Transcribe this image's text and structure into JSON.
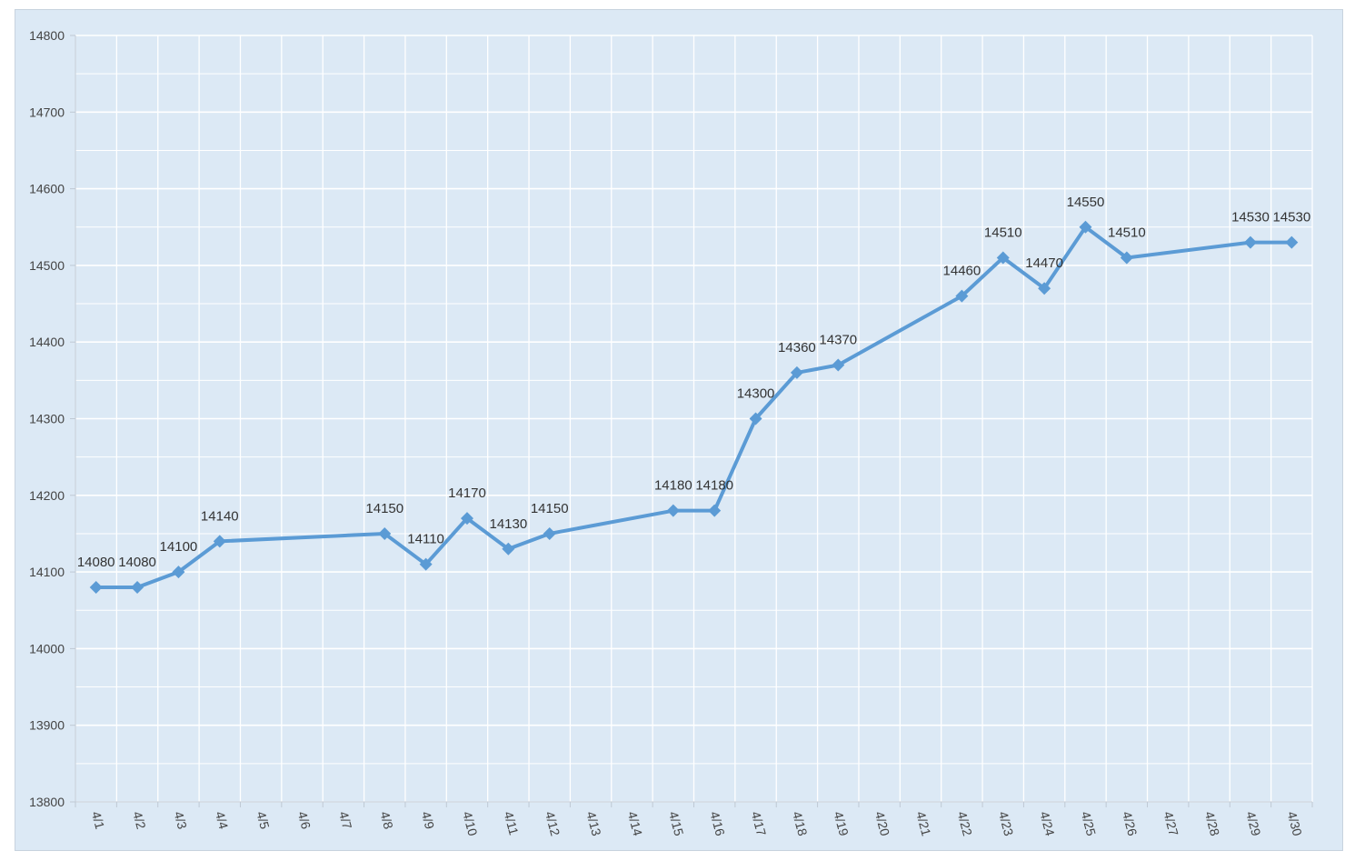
{
  "chart_data": {
    "type": "line",
    "title": "",
    "xlabel": "",
    "ylabel": "",
    "categories": [
      "4/1",
      "4/2",
      "4/3",
      "4/4",
      "4/5",
      "4/6",
      "4/7",
      "4/8",
      "4/9",
      "4/10",
      "4/11",
      "4/12",
      "4/13",
      "4/14",
      "4/15",
      "4/16",
      "4/17",
      "4/18",
      "4/19",
      "4/20",
      "4/21",
      "4/22",
      "4/23",
      "4/24",
      "4/25",
      "4/26",
      "4/27",
      "4/28",
      "4/29",
      "4/30"
    ],
    "series": [
      {
        "color": "#5b9bd5",
        "marker": "diamond",
        "values": [
          14080,
          14080,
          14100,
          14140,
          null,
          null,
          null,
          14150,
          14110,
          14170,
          14130,
          14150,
          null,
          null,
          14180,
          14180,
          14300,
          14360,
          14370,
          null,
          null,
          14460,
          14510,
          14470,
          14550,
          14510,
          null,
          null,
          14530,
          14530
        ]
      }
    ],
    "ylim": [
      13800,
      14800
    ],
    "yticks": [
      13800,
      13900,
      14000,
      14100,
      14200,
      14300,
      14400,
      14500,
      14600,
      14700,
      14800
    ],
    "ytick_labels": [
      "13800",
      "13900",
      "14000",
      "14100",
      "14200",
      "14300",
      "14400",
      "14500",
      "14600",
      "14700",
      "14800"
    ],
    "grid": true,
    "data_labels": true,
    "legend": "none",
    "background_color": "#dce9f5",
    "grid_color": "#ffffff"
  }
}
